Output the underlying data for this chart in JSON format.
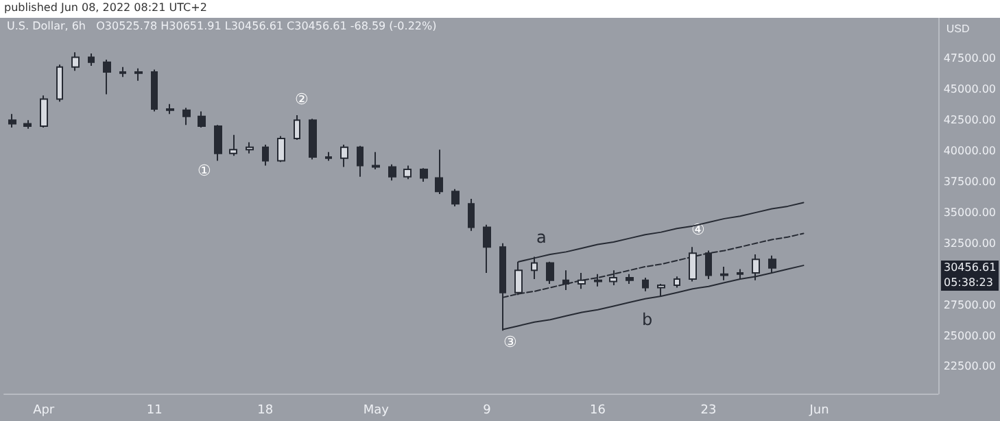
{
  "chart_data": {
    "type": "candlestick",
    "title": "U.S. Dollar, 6h",
    "subtitle": "O30525.78 H30651.91 L30456.61 C30456.61 -68.59 (-0.22%)",
    "ylabel": "USD",
    "categories": [
      null,
      null,
      "Apr",
      null,
      null,
      null,
      null,
      null,
      null,
      "11",
      null,
      null,
      null,
      null,
      null,
      null,
      "18",
      null,
      null,
      null,
      null,
      null,
      null,
      "May",
      null,
      null,
      null,
      null,
      null,
      null,
      "9",
      null,
      null,
      null,
      null,
      null,
      null,
      "16",
      null,
      null,
      null,
      null,
      null,
      null,
      "23",
      null,
      null,
      null,
      null,
      null,
      null,
      "Jun",
      null,
      null,
      null,
      null,
      null,
      null,
      null
    ],
    "color": "#262a33",
    "ohlc": [
      [
        42500,
        43000,
        41900,
        42200
      ],
      [
        42200,
        42500,
        41800,
        42000
      ],
      [
        42000,
        44500,
        41900,
        44200
      ],
      [
        44200,
        47000,
        44000,
        46800
      ],
      [
        46800,
        48000,
        46500,
        47600
      ],
      [
        47600,
        47900,
        46900,
        47200
      ],
      [
        47200,
        47400,
        44600,
        46400
      ],
      [
        46400,
        46800,
        46000,
        46300
      ],
      [
        46300,
        46700,
        45700,
        46400
      ],
      [
        46400,
        46600,
        43200,
        43400
      ],
      [
        43400,
        43800,
        43000,
        43300
      ],
      [
        43300,
        43500,
        42100,
        42800
      ],
      [
        42800,
        43200,
        41900,
        42000
      ],
      [
        42000,
        42100,
        39200,
        39800
      ],
      [
        39800,
        41300,
        39600,
        40100
      ],
      [
        40100,
        40700,
        39800,
        40300
      ],
      [
        40300,
        40500,
        38800,
        39200
      ],
      [
        39200,
        41200,
        39100,
        41000
      ],
      [
        41000,
        42900,
        40900,
        42500
      ],
      [
        42500,
        42600,
        39300,
        39500
      ],
      [
        39500,
        39900,
        39200,
        39400
      ],
      [
        39400,
        40500,
        38700,
        40300
      ],
      [
        40300,
        40400,
        37900,
        38800
      ],
      [
        38800,
        39900,
        38500,
        38700
      ],
      [
        38700,
        38900,
        37600,
        37900
      ],
      [
        37900,
        38800,
        37700,
        38500
      ],
      [
        38500,
        38600,
        37500,
        37800
      ],
      [
        37800,
        40100,
        36500,
        36700
      ],
      [
        36700,
        36900,
        35500,
        35700
      ],
      [
        35700,
        36100,
        33500,
        33800
      ],
      [
        33800,
        34000,
        30100,
        32200
      ],
      [
        32200,
        32500,
        25400,
        28500
      ],
      [
        28500,
        31000,
        28300,
        30300
      ],
      [
        30300,
        31400,
        29600,
        30900
      ],
      [
        30900,
        31000,
        29200,
        29500
      ],
      [
        29500,
        30300,
        28700,
        29200
      ],
      [
        29200,
        30100,
        28800,
        29500
      ],
      [
        29500,
        30000,
        29000,
        29400
      ],
      [
        29400,
        30300,
        29100,
        29700
      ],
      [
        29700,
        30000,
        29200,
        29500
      ],
      [
        29500,
        29700,
        28600,
        28900
      ],
      [
        28900,
        29200,
        28200,
        29100
      ],
      [
        29100,
        29800,
        28900,
        29600
      ],
      [
        29600,
        32200,
        29400,
        31700
      ],
      [
        31700,
        31900,
        29600,
        29900
      ],
      [
        29900,
        30600,
        29500,
        30000
      ],
      [
        30000,
        30400,
        29600,
        30100
      ],
      [
        30100,
        31600,
        29500,
        31200
      ],
      [
        31200,
        31500,
        30100,
        30500
      ],
      null,
      null,
      null,
      null,
      null,
      null,
      null,
      null,
      null,
      null
    ],
    "series": [
      {
        "type": "line",
        "color": "#262a33",
        "line_style": "solid",
        "values": [
          null,
          null,
          null,
          null,
          null,
          null,
          null,
          null,
          null,
          null,
          null,
          null,
          null,
          null,
          null,
          null,
          null,
          null,
          null,
          null,
          null,
          null,
          null,
          null,
          null,
          null,
          null,
          null,
          null,
          null,
          null,
          null,
          31000,
          31300,
          31600,
          31800,
          32100,
          32400,
          32600,
          32900,
          33200,
          33400,
          33700,
          33900,
          34200,
          34500,
          34700,
          35000,
          35300,
          35500,
          35800,
          null,
          null,
          null,
          null,
          null,
          null,
          null,
          null
        ]
      },
      {
        "type": "line",
        "color": "#262a33",
        "line_style": "dashed",
        "values": [
          null,
          null,
          null,
          null,
          null,
          null,
          null,
          null,
          null,
          null,
          null,
          null,
          null,
          null,
          null,
          null,
          null,
          null,
          null,
          null,
          null,
          null,
          null,
          null,
          null,
          null,
          null,
          null,
          null,
          null,
          null,
          28100,
          28400,
          28600,
          28900,
          29200,
          29500,
          29700,
          30000,
          30300,
          30600,
          30800,
          31100,
          31400,
          31700,
          31900,
          32200,
          32500,
          32800,
          33000,
          33300,
          null,
          null,
          null,
          null,
          null,
          null,
          null,
          null
        ]
      },
      {
        "type": "line",
        "color": "#262a33",
        "line_style": "solid",
        "values": [
          null,
          null,
          null,
          null,
          null,
          null,
          null,
          null,
          null,
          null,
          null,
          null,
          null,
          null,
          null,
          null,
          null,
          null,
          null,
          null,
          null,
          null,
          null,
          null,
          null,
          null,
          null,
          null,
          null,
          null,
          null,
          25500,
          25800,
          26100,
          26300,
          26600,
          26900,
          27100,
          27400,
          27700,
          28000,
          28200,
          28500,
          28800,
          29000,
          29300,
          29600,
          29800,
          30100,
          30400,
          30700,
          null,
          null,
          null,
          null,
          null,
          null,
          null,
          null
        ]
      }
    ],
    "ylim": [
      20300,
      50800
    ],
    "yticks": [
      {
        "value": 22500,
        "label": "22500.00"
      },
      {
        "value": 25000,
        "label": "25000.00"
      },
      {
        "value": 27500,
        "label": "27500.00"
      },
      {
        "value": 32500,
        "label": "32500.00"
      },
      {
        "value": 35000,
        "label": "35000.00"
      },
      {
        "value": 37500,
        "label": "37500.00"
      },
      {
        "value": 40000,
        "label": "40000.00"
      },
      {
        "value": 42500,
        "label": "42500.00"
      },
      {
        "value": 45000,
        "label": "45000.00"
      },
      {
        "value": 47500,
        "label": "47500.00"
      }
    ],
    "grid": false,
    "annotations": [
      "published Jun 08, 2022 08:21 UTC+2",
      "①",
      "②",
      "③",
      "④",
      "a",
      "b",
      "30456.61",
      "05:38:23"
    ]
  }
}
